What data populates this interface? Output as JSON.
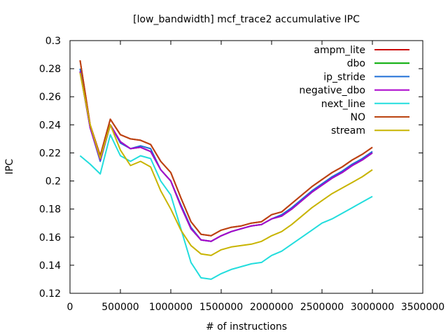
{
  "chart_data": {
    "type": "line",
    "title": "[low_bandwidth] mcf_trace2 accumulative IPC",
    "xlabel": "# of instructions",
    "ylabel": "IPC",
    "xlim": [
      0,
      3500000
    ],
    "ylim": [
      0.12,
      0.3
    ],
    "x_ticks": [
      "0",
      "500000",
      "1000000",
      "1500000",
      "2000000",
      "2500000",
      "3000000",
      "3500000"
    ],
    "y_ticks": [
      "0.12",
      "0.14",
      "0.16",
      "0.18",
      "0.2",
      "0.22",
      "0.24",
      "0.26",
      "0.28",
      "0.3"
    ],
    "grid": false,
    "legend": "top-right",
    "x": [
      100000,
      200000,
      300000,
      400000,
      500000,
      600000,
      700000,
      800000,
      900000,
      1000000,
      1100000,
      1200000,
      1300000,
      1400000,
      1500000,
      1600000,
      1700000,
      1800000,
      1900000,
      2000000,
      2100000,
      2200000,
      2300000,
      2400000,
      2500000,
      2600000,
      2700000,
      2800000,
      2900000,
      3000000
    ],
    "series": [
      {
        "name": "ampm_lite",
        "color": "#cc0000",
        "values": [
          0.286,
          0.24,
          0.218,
          0.244,
          0.233,
          0.23,
          0.229,
          0.226,
          0.214,
          0.206,
          0.188,
          0.171,
          0.162,
          0.161,
          0.165,
          0.167,
          0.168,
          0.17,
          0.171,
          0.176,
          0.178,
          0.184,
          0.19,
          0.196,
          0.201,
          0.206,
          0.21,
          0.215,
          0.219,
          0.224
        ]
      },
      {
        "name": "dbo",
        "color": "#00aa00",
        "values": [
          0.278,
          0.238,
          0.215,
          0.24,
          0.228,
          0.223,
          0.224,
          0.221,
          0.208,
          0.2,
          0.182,
          0.166,
          0.158,
          0.157,
          0.161,
          0.164,
          0.166,
          0.168,
          0.169,
          0.173,
          0.175,
          0.18,
          0.186,
          0.192,
          0.197,
          0.202,
          0.206,
          0.211,
          0.215,
          0.22
        ]
      },
      {
        "name": "ip_stride",
        "color": "#1f6fd6",
        "values": [
          0.28,
          0.238,
          0.214,
          0.24,
          0.227,
          0.223,
          0.225,
          0.223,
          0.208,
          0.2,
          0.183,
          0.167,
          0.158,
          0.157,
          0.161,
          0.164,
          0.166,
          0.168,
          0.169,
          0.173,
          0.176,
          0.181,
          0.187,
          0.193,
          0.198,
          0.203,
          0.207,
          0.212,
          0.216,
          0.221
        ]
      },
      {
        "name": "negative_dbo",
        "color": "#aa00cc",
        "values": [
          0.278,
          0.238,
          0.215,
          0.24,
          0.228,
          0.223,
          0.224,
          0.221,
          0.208,
          0.2,
          0.182,
          0.166,
          0.158,
          0.157,
          0.161,
          0.164,
          0.166,
          0.168,
          0.169,
          0.173,
          0.175,
          0.18,
          0.186,
          0.192,
          0.197,
          0.202,
          0.206,
          0.211,
          0.215,
          0.22
        ]
      },
      {
        "name": "next_line",
        "color": "#22dddd",
        "values": [
          0.218,
          0.212,
          0.205,
          0.233,
          0.218,
          0.214,
          0.218,
          0.216,
          0.2,
          0.19,
          0.166,
          0.142,
          0.131,
          0.13,
          0.134,
          0.137,
          0.139,
          0.141,
          0.142,
          0.147,
          0.15,
          0.155,
          0.16,
          0.165,
          0.17,
          0.173,
          0.177,
          0.181,
          0.185,
          0.189
        ]
      },
      {
        "name": "NO",
        "color": "#bb4411",
        "values": [
          0.286,
          0.24,
          0.218,
          0.244,
          0.233,
          0.23,
          0.229,
          0.226,
          0.214,
          0.206,
          0.188,
          0.171,
          0.162,
          0.161,
          0.165,
          0.167,
          0.168,
          0.17,
          0.171,
          0.176,
          0.178,
          0.184,
          0.19,
          0.196,
          0.201,
          0.206,
          0.21,
          0.215,
          0.219,
          0.224
        ]
      },
      {
        "name": "stream",
        "color": "#c8b400",
        "values": [
          0.277,
          0.24,
          0.216,
          0.24,
          0.222,
          0.211,
          0.214,
          0.21,
          0.193,
          0.18,
          0.165,
          0.154,
          0.148,
          0.147,
          0.151,
          0.153,
          0.154,
          0.155,
          0.157,
          0.161,
          0.164,
          0.169,
          0.175,
          0.181,
          0.186,
          0.191,
          0.195,
          0.199,
          0.203,
          0.208
        ]
      }
    ]
  }
}
